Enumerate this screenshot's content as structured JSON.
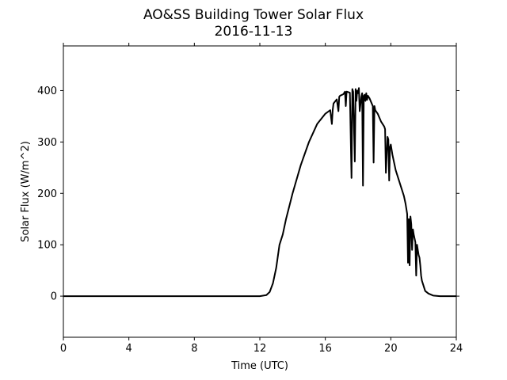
{
  "chart_data": {
    "type": "line",
    "title": "AO&SS Building Tower Solar Flux",
    "subtitle": "2016-11-13",
    "xlabel": "Time (UTC)",
    "ylabel": "Solar Flux (W/m^2)",
    "xlim": [
      0,
      24
    ],
    "ylim": [
      -80,
      487
    ],
    "xticks": [
      0,
      4,
      8,
      12,
      16,
      20,
      24
    ],
    "yticks": [
      0,
      100,
      200,
      300,
      400
    ],
    "grid": false,
    "legend": "none",
    "line_color": "#000000",
    "series": [
      {
        "x": [
          0,
          12.0,
          12.4,
          12.6,
          12.8,
          13.0,
          13.2,
          13.4,
          13.6,
          14.0,
          14.5,
          15.0,
          15.5,
          16.0,
          16.3,
          16.4,
          16.45,
          16.5,
          16.7,
          16.8,
          16.85,
          16.9,
          17.1,
          17.2,
          17.25,
          17.3,
          17.5,
          17.6,
          17.65,
          17.7,
          17.8,
          17.85,
          17.9,
          17.95,
          18.0,
          18.05,
          18.1,
          18.2,
          18.25,
          18.3,
          18.35,
          18.4,
          18.45,
          18.5,
          18.55,
          18.6,
          18.7,
          18.9,
          18.95,
          19.0,
          19.05,
          19.2,
          19.4,
          19.6,
          19.65,
          19.7,
          19.8,
          19.85,
          19.9,
          19.95,
          20.0,
          20.05,
          20.1,
          20.3,
          20.6,
          20.8,
          20.9,
          21.0,
          21.05,
          21.1,
          21.15,
          21.2,
          21.25,
          21.3,
          21.35,
          21.4,
          21.5,
          21.55,
          21.6,
          21.65,
          21.7,
          21.75,
          21.8,
          21.85,
          21.9,
          22.0,
          22.05,
          22.1,
          22.3,
          22.6,
          23.0,
          24.0
        ],
        "y": [
          0,
          0,
          2,
          8,
          25,
          55,
          100,
          120,
          150,
          200,
          255,
          300,
          335,
          355,
          362,
          335,
          362,
          375,
          383,
          360,
          388,
          390,
          393,
          398,
          370,
          398,
          396,
          230,
          403,
          398,
          262,
          403,
          380,
          400,
          395,
          405,
          360,
          388,
          395,
          215,
          390,
          392,
          380,
          395,
          382,
          390,
          385,
          370,
          260,
          370,
          362,
          355,
          340,
          330,
          325,
          240,
          310,
          305,
          225,
          290,
          295,
          285,
          275,
          245,
          215,
          195,
          180,
          160,
          65,
          150,
          60,
          155,
          140,
          90,
          130,
          120,
          105,
          40,
          100,
          90,
          80,
          75,
          60,
          40,
          30,
          20,
          15,
          10,
          5,
          1,
          0,
          0
        ]
      }
    ]
  }
}
